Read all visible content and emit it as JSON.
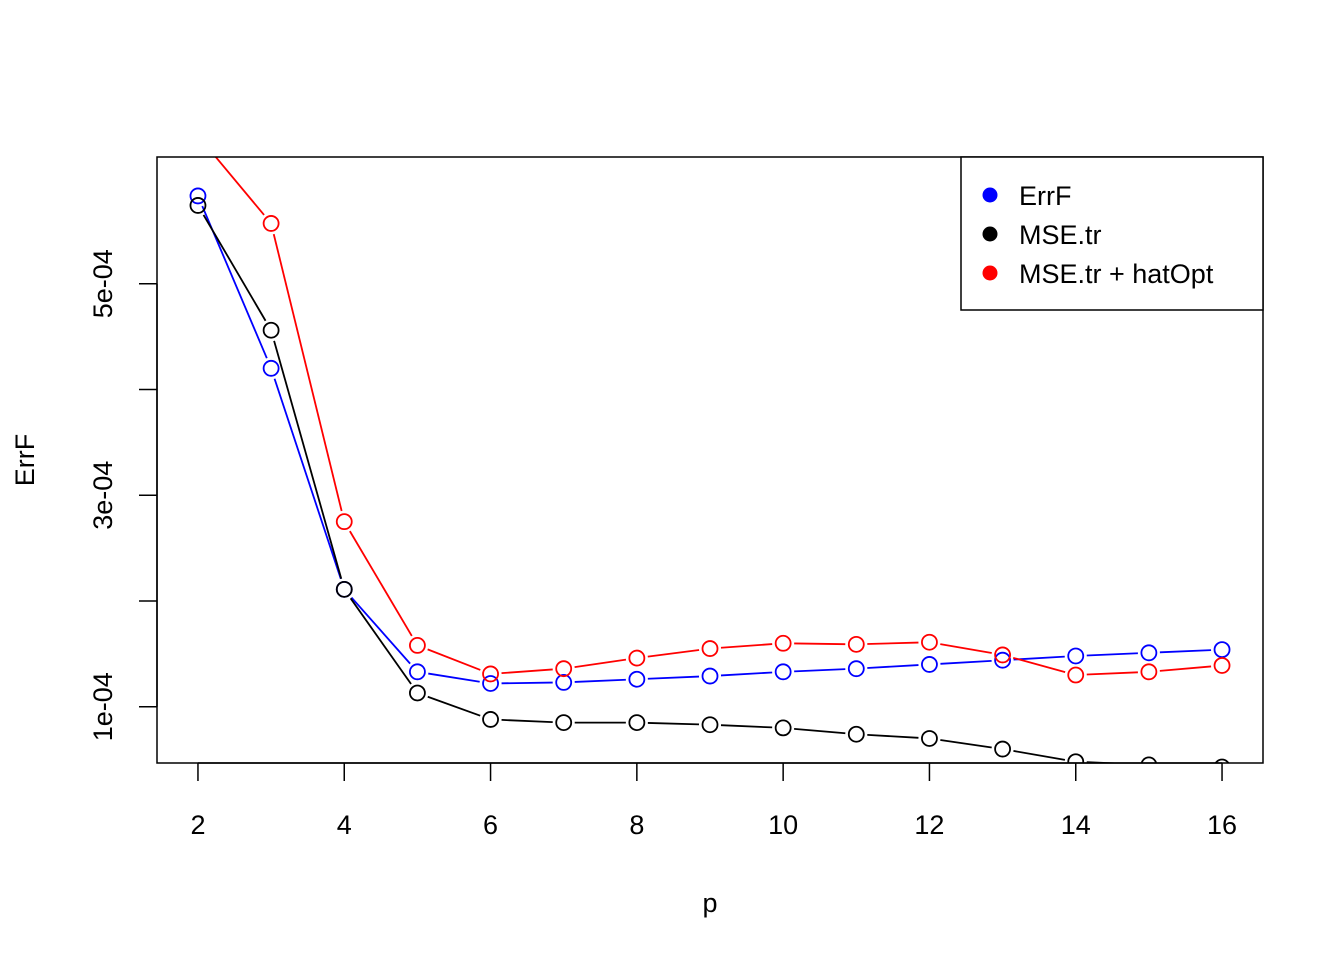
{
  "chart_data": {
    "type": "line",
    "title": "",
    "xlabel": "p",
    "ylabel": "ErrF",
    "xlim": [
      1.44,
      16.56
    ],
    "ylim": [
      4.68e-05,
      0.0006198
    ],
    "x_ticks": [
      2,
      4,
      6,
      8,
      10,
      12,
      14,
      16
    ],
    "x_tick_labels": [
      "2",
      "4",
      "6",
      "8",
      "10",
      "12",
      "14",
      "16"
    ],
    "y_ticks": [
      0.0001,
      0.0002,
      0.0003,
      0.0004,
      0.0005
    ],
    "y_tick_labels": [
      {
        "value": 0.0001,
        "label": "1e-04"
      },
      {
        "value": 0.0003,
        "label": "3e-04"
      },
      {
        "value": 0.0005,
        "label": "5e-04"
      }
    ],
    "grid": false,
    "legend_position": "top-right",
    "x": [
      2,
      3,
      4,
      5,
      6,
      7,
      8,
      9,
      10,
      11,
      12,
      13,
      14,
      15,
      16
    ],
    "series": [
      {
        "name": "ErrF",
        "color": "#0000ff",
        "values": [
          0.000583,
          0.00042,
          0.000211,
          0.000133,
          0.000122,
          0.000123,
          0.000126,
          0.000129,
          0.000133,
          0.000136,
          0.00014,
          0.000144,
          0.000148,
          0.000151,
          0.000154
        ]
      },
      {
        "name": "MSE.tr",
        "color": "#000000",
        "values": [
          0.000574,
          0.000456,
          0.000211,
          0.000113,
          8.8e-05,
          8.5e-05,
          8.5e-05,
          8.3e-05,
          8e-05,
          7.4e-05,
          7e-05,
          6e-05,
          4.8e-05,
          4.5e-05,
          4.3e-05
        ]
      },
      {
        "name": "MSE.tr + hatOpt",
        "color": "#ff0000",
        "values": [
          0.00064,
          0.000557,
          0.000275,
          0.000158,
          0.000131,
          0.000136,
          0.000146,
          0.000155,
          0.00016,
          0.000159,
          0.000161,
          0.000149,
          0.00013,
          0.000133,
          0.000139
        ]
      }
    ]
  }
}
